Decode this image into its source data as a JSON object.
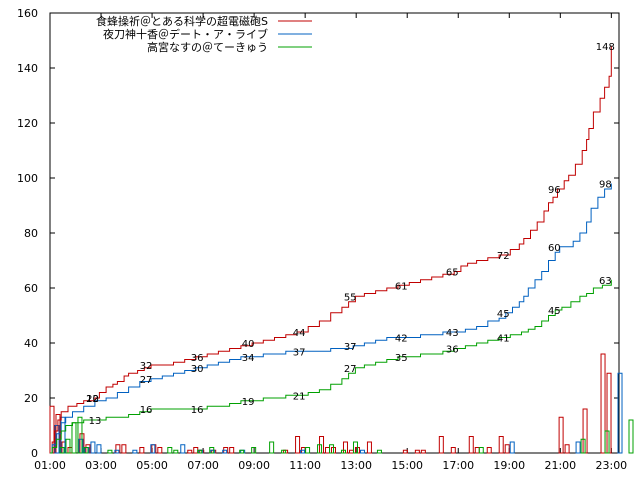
{
  "chart_data": {
    "type": "line",
    "x_ticks": [
      "01:00",
      "03:00",
      "05:00",
      "07:00",
      "09:00",
      "11:00",
      "13:00",
      "15:00",
      "17:00",
      "19:00",
      "21:00",
      "23:00"
    ],
    "x_range": [
      0,
      22.3
    ],
    "ylim": [
      0,
      160
    ],
    "y_ticks": [
      0,
      20,
      40,
      60,
      80,
      100,
      120,
      140,
      160
    ],
    "legend_position": "top-center",
    "series": [
      {
        "name": "食蜂操祈＠とある科学の超電磁砲S",
        "color": "#c00000",
        "cumulative": [
          [
            0,
            0
          ],
          [
            0.1,
            4
          ],
          [
            0.2,
            8
          ],
          [
            0.35,
            12
          ],
          [
            0.5,
            15
          ],
          [
            0.8,
            17
          ],
          [
            1.2,
            18
          ],
          [
            1.5,
            19
          ],
          [
            2,
            20
          ],
          [
            2.2,
            22
          ],
          [
            2.5,
            24
          ],
          [
            2.8,
            25
          ],
          [
            3,
            26
          ],
          [
            3.3,
            28
          ],
          [
            3.5,
            29
          ],
          [
            3.9,
            30
          ],
          [
            4.2,
            31
          ],
          [
            4.5,
            32
          ],
          [
            5,
            32
          ],
          [
            5.5,
            33
          ],
          [
            6,
            34
          ],
          [
            6.5,
            35
          ],
          [
            7,
            36
          ],
          [
            7.5,
            37
          ],
          [
            8,
            38
          ],
          [
            8.5,
            39
          ],
          [
            9,
            40
          ],
          [
            9.5,
            41
          ],
          [
            10,
            42
          ],
          [
            10.5,
            43
          ],
          [
            11,
            44
          ],
          [
            11.5,
            46
          ],
          [
            12,
            48
          ],
          [
            12.5,
            51
          ],
          [
            13,
            53
          ],
          [
            13.3,
            55
          ],
          [
            13.6,
            57
          ],
          [
            14,
            58
          ],
          [
            14.5,
            59
          ],
          [
            15,
            60
          ],
          [
            15.5,
            61
          ],
          [
            16,
            62
          ],
          [
            16.5,
            63
          ],
          [
            17,
            64
          ],
          [
            17.5,
            65
          ],
          [
            18,
            66
          ],
          [
            18.3,
            68
          ],
          [
            18.6,
            69
          ],
          [
            19,
            70
          ],
          [
            19.5,
            71
          ],
          [
            20,
            72
          ],
          [
            20.5,
            74
          ],
          [
            20.9,
            76
          ],
          [
            21.1,
            78
          ],
          [
            21.4,
            81
          ],
          [
            21.7,
            84
          ],
          [
            22,
            88
          ],
          [
            22.2,
            91
          ],
          [
            22.4,
            93
          ],
          [
            22.6,
            96
          ],
          [
            22.9,
            99
          ],
          [
            23.1,
            101
          ],
          [
            23.4,
            105
          ],
          [
            23.7,
            110
          ],
          [
            23.9,
            114
          ],
          [
            24.0,
            118
          ],
          [
            24.2,
            124
          ],
          [
            24.5,
            129
          ],
          [
            24.7,
            133
          ],
          [
            24.9,
            137
          ],
          [
            25,
            148
          ]
        ],
        "hourly": [
          17,
          14,
          4,
          2,
          0,
          7,
          3,
          0,
          0,
          0,
          0,
          3,
          3,
          0,
          0,
          2,
          0,
          3,
          2,
          0,
          0,
          0,
          0,
          1,
          2,
          1,
          0,
          1,
          0,
          2,
          2,
          0,
          0,
          0,
          0,
          0,
          0,
          0,
          0,
          1,
          0,
          6,
          2,
          0,
          0,
          6,
          2,
          2,
          0,
          4,
          1,
          2,
          0,
          4,
          0,
          0,
          0,
          0,
          0,
          1,
          0,
          1,
          1,
          0,
          0,
          6,
          0,
          2,
          0,
          0,
          6,
          2,
          0,
          2,
          0,
          6,
          3,
          0,
          0,
          0,
          0,
          0,
          0,
          0,
          0,
          13,
          3,
          0,
          0,
          16,
          0,
          0,
          36,
          29,
          0
        ]
      },
      {
        "name": "夜刀神十香＠デート・ア・ライブ",
        "color": "#0060c0",
        "cumulative": [
          [
            0,
            0
          ],
          [
            0.1,
            3
          ],
          [
            0.3,
            7
          ],
          [
            0.5,
            11
          ],
          [
            0.7,
            13
          ],
          [
            1,
            15
          ],
          [
            1.5,
            17
          ],
          [
            2,
            19
          ],
          [
            2.5,
            20
          ],
          [
            3,
            22
          ],
          [
            3.5,
            24
          ],
          [
            4,
            26
          ],
          [
            4.5,
            27
          ],
          [
            5,
            28
          ],
          [
            5.5,
            29
          ],
          [
            6,
            30
          ],
          [
            6.5,
            31
          ],
          [
            7,
            32
          ],
          [
            7.5,
            33
          ],
          [
            8,
            34
          ],
          [
            8.5,
            35
          ],
          [
            9,
            35
          ],
          [
            9.5,
            36
          ],
          [
            10,
            36
          ],
          [
            10.5,
            37
          ],
          [
            11,
            37
          ],
          [
            11.5,
            37
          ],
          [
            12,
            37
          ],
          [
            12.5,
            38
          ],
          [
            13,
            38
          ],
          [
            13.5,
            39
          ],
          [
            14,
            40
          ],
          [
            14.5,
            41
          ],
          [
            15,
            42
          ],
          [
            15.5,
            42
          ],
          [
            16,
            42
          ],
          [
            16.5,
            43
          ],
          [
            17,
            43
          ],
          [
            17.5,
            44
          ],
          [
            18,
            44
          ],
          [
            18.5,
            45
          ],
          [
            19,
            46
          ],
          [
            19.5,
            48
          ],
          [
            20,
            49
          ],
          [
            20.3,
            51
          ],
          [
            20.6,
            53
          ],
          [
            20.9,
            55
          ],
          [
            21.1,
            57
          ],
          [
            21.3,
            60
          ],
          [
            21.6,
            63
          ],
          [
            21.9,
            66
          ],
          [
            22.2,
            70
          ],
          [
            22.5,
            73
          ],
          [
            22.7,
            75
          ],
          [
            23.3,
            77
          ],
          [
            23.6,
            80
          ],
          [
            23.9,
            84
          ],
          [
            24.1,
            89
          ],
          [
            24.4,
            93
          ],
          [
            24.7,
            96
          ],
          [
            25,
            98
          ]
        ],
        "hourly": [
          10,
          13,
          0,
          0,
          5,
          2,
          4,
          3,
          0,
          0,
          1,
          0,
          0,
          1,
          0,
          0,
          3,
          0,
          0,
          0,
          0,
          3,
          0,
          0,
          1,
          0,
          1,
          0,
          1,
          0,
          0,
          1,
          0,
          0,
          0,
          0,
          0,
          0,
          0,
          0,
          0,
          1,
          0,
          0,
          0,
          0,
          0,
          0,
          0,
          0,
          0,
          1,
          0,
          0,
          0,
          0,
          0,
          0,
          0,
          0,
          0,
          0,
          0,
          0,
          0,
          0,
          0,
          0,
          0,
          0,
          0,
          0,
          0,
          0,
          0,
          0,
          4,
          0,
          0,
          0,
          0,
          0,
          0,
          0,
          0,
          0,
          0,
          4,
          0,
          0,
          0,
          0,
          0,
          0,
          29,
          0
        ]
      },
      {
        "name": "高宮なすの＠てーきゅう",
        "color": "#00a000",
        "cumulative": [
          [
            0,
            0
          ],
          [
            0.1,
            2
          ],
          [
            0.3,
            5
          ],
          [
            0.5,
            8
          ],
          [
            0.7,
            10
          ],
          [
            1,
            11
          ],
          [
            1.5,
            12
          ],
          [
            2,
            12
          ],
          [
            2.5,
            13
          ],
          [
            3,
            13
          ],
          [
            3.5,
            14
          ],
          [
            4,
            15
          ],
          [
            4.5,
            16
          ],
          [
            5,
            16
          ],
          [
            5.5,
            16
          ],
          [
            6,
            16
          ],
          [
            6.5,
            16
          ],
          [
            7,
            17
          ],
          [
            7.5,
            17
          ],
          [
            8,
            18
          ],
          [
            8.5,
            19
          ],
          [
            9,
            19
          ],
          [
            9.5,
            20
          ],
          [
            10,
            20
          ],
          [
            10.5,
            21
          ],
          [
            11,
            21
          ],
          [
            11.5,
            22
          ],
          [
            12,
            23
          ],
          [
            12.5,
            25
          ],
          [
            13,
            27
          ],
          [
            13.3,
            29
          ],
          [
            13.6,
            31
          ],
          [
            14,
            32
          ],
          [
            14.5,
            33
          ],
          [
            15,
            34
          ],
          [
            15.5,
            35
          ],
          [
            16,
            35
          ],
          [
            16.5,
            36
          ],
          [
            17,
            36
          ],
          [
            17.5,
            37
          ],
          [
            18,
            38
          ],
          [
            18.5,
            39
          ],
          [
            19,
            40
          ],
          [
            19.5,
            41
          ],
          [
            20,
            42
          ],
          [
            20.5,
            43
          ],
          [
            21,
            44
          ],
          [
            21.3,
            45
          ],
          [
            21.6,
            46
          ],
          [
            21.9,
            48
          ],
          [
            22.2,
            50
          ],
          [
            22.5,
            52
          ],
          [
            22.8,
            53
          ],
          [
            23.2,
            55
          ],
          [
            23.6,
            57
          ],
          [
            23.9,
            58
          ],
          [
            24.2,
            60
          ],
          [
            24.6,
            61
          ],
          [
            25,
            63
          ]
        ],
        "hourly": [
          2,
          5,
          11,
          13,
          2,
          0,
          0,
          0,
          1,
          0,
          0,
          0,
          0,
          0,
          0,
          0,
          0,
          0,
          2,
          1,
          0,
          0,
          0,
          1,
          0,
          2,
          0,
          0,
          0,
          0,
          1,
          0,
          2,
          0,
          0,
          4,
          0,
          1,
          0,
          0,
          0,
          2,
          0,
          3,
          0,
          3,
          0,
          1,
          0,
          4,
          0,
          0,
          0,
          1,
          0,
          0,
          0,
          0,
          0,
          0,
          0,
          0,
          0,
          0,
          0,
          0,
          0,
          0,
          0,
          0,
          2,
          0,
          0,
          0,
          0,
          0,
          0,
          0,
          0,
          0,
          0,
          0,
          0,
          0,
          0,
          0,
          0,
          5,
          0,
          0,
          0,
          8,
          0,
          0,
          0,
          12
        ]
      }
    ],
    "labels": [
      {
        "series": 0,
        "value": "10",
        "x": 1.9
      },
      {
        "series": 0,
        "value": "22",
        "x": 1.9
      },
      {
        "series": 0,
        "value": "32",
        "x": 4.0
      },
      {
        "series": 0,
        "value": "36",
        "x": 6.0
      },
      {
        "series": 0,
        "value": "40",
        "x": 8.0
      },
      {
        "series": 0,
        "value": "44",
        "x": 10.0
      },
      {
        "series": 0,
        "value": "55",
        "x": 12.0
      },
      {
        "series": 0,
        "value": "61",
        "x": 14.0
      },
      {
        "series": 0,
        "value": "65",
        "x": 16.0
      },
      {
        "series": 0,
        "value": "72",
        "x": 18.0
      },
      {
        "series": 0,
        "value": "96",
        "x": 20.0
      },
      {
        "series": 0,
        "value": "148",
        "x": 22.0
      },
      {
        "series": 1,
        "value": "27",
        "x": 4.0
      },
      {
        "series": 1,
        "value": "30",
        "x": 6.0
      },
      {
        "series": 1,
        "value": "34",
        "x": 8.0
      },
      {
        "series": 1,
        "value": "37",
        "x": 10.0
      },
      {
        "series": 1,
        "value": "37",
        "x": 12.0
      },
      {
        "series": 1,
        "value": "42",
        "x": 14.0
      },
      {
        "series": 1,
        "value": "43",
        "x": 16.0
      },
      {
        "series": 1,
        "value": "45",
        "x": 18.0
      },
      {
        "series": 1,
        "value": "60",
        "x": 20.0
      },
      {
        "series": 1,
        "value": "98",
        "x": 22.0
      },
      {
        "series": 2,
        "value": "13",
        "x": 2.0
      },
      {
        "series": 2,
        "value": "16",
        "x": 4.0
      },
      {
        "series": 2,
        "value": "16",
        "x": 6.0
      },
      {
        "series": 2,
        "value": "19",
        "x": 8.0
      },
      {
        "series": 2,
        "value": "21",
        "x": 10.0
      },
      {
        "series": 2,
        "value": "27",
        "x": 12.0
      },
      {
        "series": 2,
        "value": "35",
        "x": 14.0
      },
      {
        "series": 2,
        "value": "36",
        "x": 16.0
      },
      {
        "series": 2,
        "value": "41",
        "x": 18.0
      },
      {
        "series": 2,
        "value": "45",
        "x": 20.0
      },
      {
        "series": 2,
        "value": "63",
        "x": 22.0
      }
    ]
  }
}
